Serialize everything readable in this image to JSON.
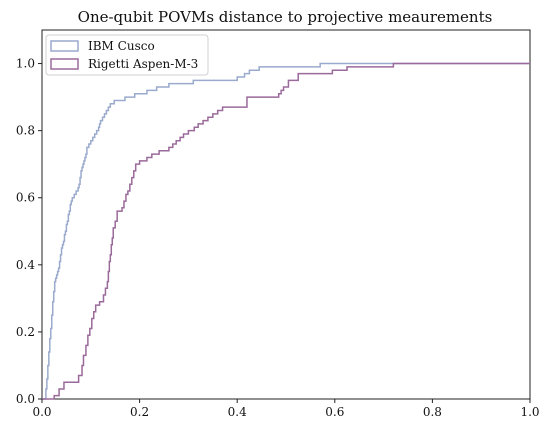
{
  "chart_data": {
    "type": "line",
    "subtype": "step-ecdf",
    "title": "One-qubit POVMs distance to projective meaurements",
    "xlabel": "",
    "ylabel": "",
    "xlim": [
      0,
      1.0
    ],
    "ylim": [
      0,
      1.1
    ],
    "x_ticks": [
      0.0,
      0.2,
      0.4,
      0.6,
      0.8,
      1.0
    ],
    "x_tick_labels": [
      "0.0",
      "0.2",
      "0.4",
      "0.6",
      "0.8",
      "1.0"
    ],
    "y_ticks": [
      0.0,
      0.2,
      0.4,
      0.6,
      0.8,
      1.0
    ],
    "y_tick_labels": [
      "0.0",
      "0.2",
      "0.4",
      "0.6",
      "0.8",
      "1.0"
    ],
    "grid": false,
    "legend_position": "top-left",
    "series": [
      {
        "name": "IBM Cusco",
        "color": "#9aaacd",
        "points": [
          [
            0.0,
            0.0
          ],
          [
            0.008,
            0.0
          ],
          [
            0.008,
            0.03
          ],
          [
            0.01,
            0.06
          ],
          [
            0.012,
            0.1
          ],
          [
            0.014,
            0.14
          ],
          [
            0.016,
            0.18
          ],
          [
            0.018,
            0.21
          ],
          [
            0.02,
            0.25
          ],
          [
            0.022,
            0.29
          ],
          [
            0.024,
            0.32
          ],
          [
            0.026,
            0.35
          ],
          [
            0.028,
            0.36
          ],
          [
            0.03,
            0.37
          ],
          [
            0.032,
            0.38
          ],
          [
            0.034,
            0.39
          ],
          [
            0.036,
            0.41
          ],
          [
            0.038,
            0.43
          ],
          [
            0.04,
            0.45
          ],
          [
            0.042,
            0.46
          ],
          [
            0.044,
            0.47
          ],
          [
            0.046,
            0.49
          ],
          [
            0.048,
            0.5
          ],
          [
            0.05,
            0.52
          ],
          [
            0.052,
            0.53
          ],
          [
            0.054,
            0.55
          ],
          [
            0.056,
            0.56
          ],
          [
            0.058,
            0.58
          ],
          [
            0.06,
            0.59
          ],
          [
            0.062,
            0.6
          ],
          [
            0.066,
            0.61
          ],
          [
            0.07,
            0.62
          ],
          [
            0.074,
            0.63
          ],
          [
            0.076,
            0.64
          ],
          [
            0.078,
            0.66
          ],
          [
            0.08,
            0.68
          ],
          [
            0.082,
            0.69
          ],
          [
            0.084,
            0.7
          ],
          [
            0.086,
            0.71
          ],
          [
            0.088,
            0.72
          ],
          [
            0.09,
            0.73
          ],
          [
            0.092,
            0.75
          ],
          [
            0.096,
            0.76
          ],
          [
            0.1,
            0.77
          ],
          [
            0.104,
            0.78
          ],
          [
            0.108,
            0.79
          ],
          [
            0.112,
            0.8
          ],
          [
            0.116,
            0.81
          ],
          [
            0.118,
            0.82
          ],
          [
            0.12,
            0.83
          ],
          [
            0.124,
            0.84
          ],
          [
            0.128,
            0.85
          ],
          [
            0.132,
            0.86
          ],
          [
            0.136,
            0.87
          ],
          [
            0.14,
            0.88
          ],
          [
            0.148,
            0.89
          ],
          [
            0.17,
            0.9
          ],
          [
            0.19,
            0.91
          ],
          [
            0.215,
            0.92
          ],
          [
            0.235,
            0.93
          ],
          [
            0.26,
            0.94
          ],
          [
            0.31,
            0.95
          ],
          [
            0.4,
            0.96
          ],
          [
            0.415,
            0.97
          ],
          [
            0.425,
            0.98
          ],
          [
            0.445,
            0.99
          ],
          [
            0.57,
            1.0
          ],
          [
            1.0,
            1.0
          ]
        ]
      },
      {
        "name": "Rigetti Aspen-M-3",
        "color": "#9a6a9a",
        "points": [
          [
            0.0,
            0.0
          ],
          [
            0.025,
            0.0
          ],
          [
            0.025,
            0.01
          ],
          [
            0.035,
            0.03
          ],
          [
            0.045,
            0.05
          ],
          [
            0.075,
            0.07
          ],
          [
            0.082,
            0.1
          ],
          [
            0.085,
            0.13
          ],
          [
            0.09,
            0.16
          ],
          [
            0.094,
            0.19
          ],
          [
            0.098,
            0.21
          ],
          [
            0.102,
            0.24
          ],
          [
            0.106,
            0.26
          ],
          [
            0.11,
            0.28
          ],
          [
            0.118,
            0.29
          ],
          [
            0.126,
            0.31
          ],
          [
            0.13,
            0.33
          ],
          [
            0.134,
            0.35
          ],
          [
            0.136,
            0.38
          ],
          [
            0.138,
            0.41
          ],
          [
            0.14,
            0.43
          ],
          [
            0.142,
            0.46
          ],
          [
            0.144,
            0.48
          ],
          [
            0.146,
            0.51
          ],
          [
            0.15,
            0.53
          ],
          [
            0.154,
            0.56
          ],
          [
            0.164,
            0.57
          ],
          [
            0.168,
            0.59
          ],
          [
            0.172,
            0.61
          ],
          [
            0.176,
            0.62
          ],
          [
            0.18,
            0.64
          ],
          [
            0.184,
            0.66
          ],
          [
            0.188,
            0.68
          ],
          [
            0.192,
            0.7
          ],
          [
            0.2,
            0.71
          ],
          [
            0.215,
            0.72
          ],
          [
            0.225,
            0.73
          ],
          [
            0.24,
            0.74
          ],
          [
            0.26,
            0.75
          ],
          [
            0.268,
            0.76
          ],
          [
            0.275,
            0.77
          ],
          [
            0.283,
            0.78
          ],
          [
            0.29,
            0.79
          ],
          [
            0.3,
            0.8
          ],
          [
            0.312,
            0.81
          ],
          [
            0.32,
            0.82
          ],
          [
            0.33,
            0.83
          ],
          [
            0.34,
            0.84
          ],
          [
            0.35,
            0.85
          ],
          [
            0.36,
            0.86
          ],
          [
            0.37,
            0.87
          ],
          [
            0.42,
            0.9
          ],
          [
            0.485,
            0.91
          ],
          [
            0.49,
            0.92
          ],
          [
            0.495,
            0.93
          ],
          [
            0.505,
            0.95
          ],
          [
            0.525,
            0.97
          ],
          [
            0.595,
            0.98
          ],
          [
            0.625,
            0.99
          ],
          [
            0.72,
            1.0
          ],
          [
            1.0,
            1.0
          ]
        ]
      }
    ]
  }
}
